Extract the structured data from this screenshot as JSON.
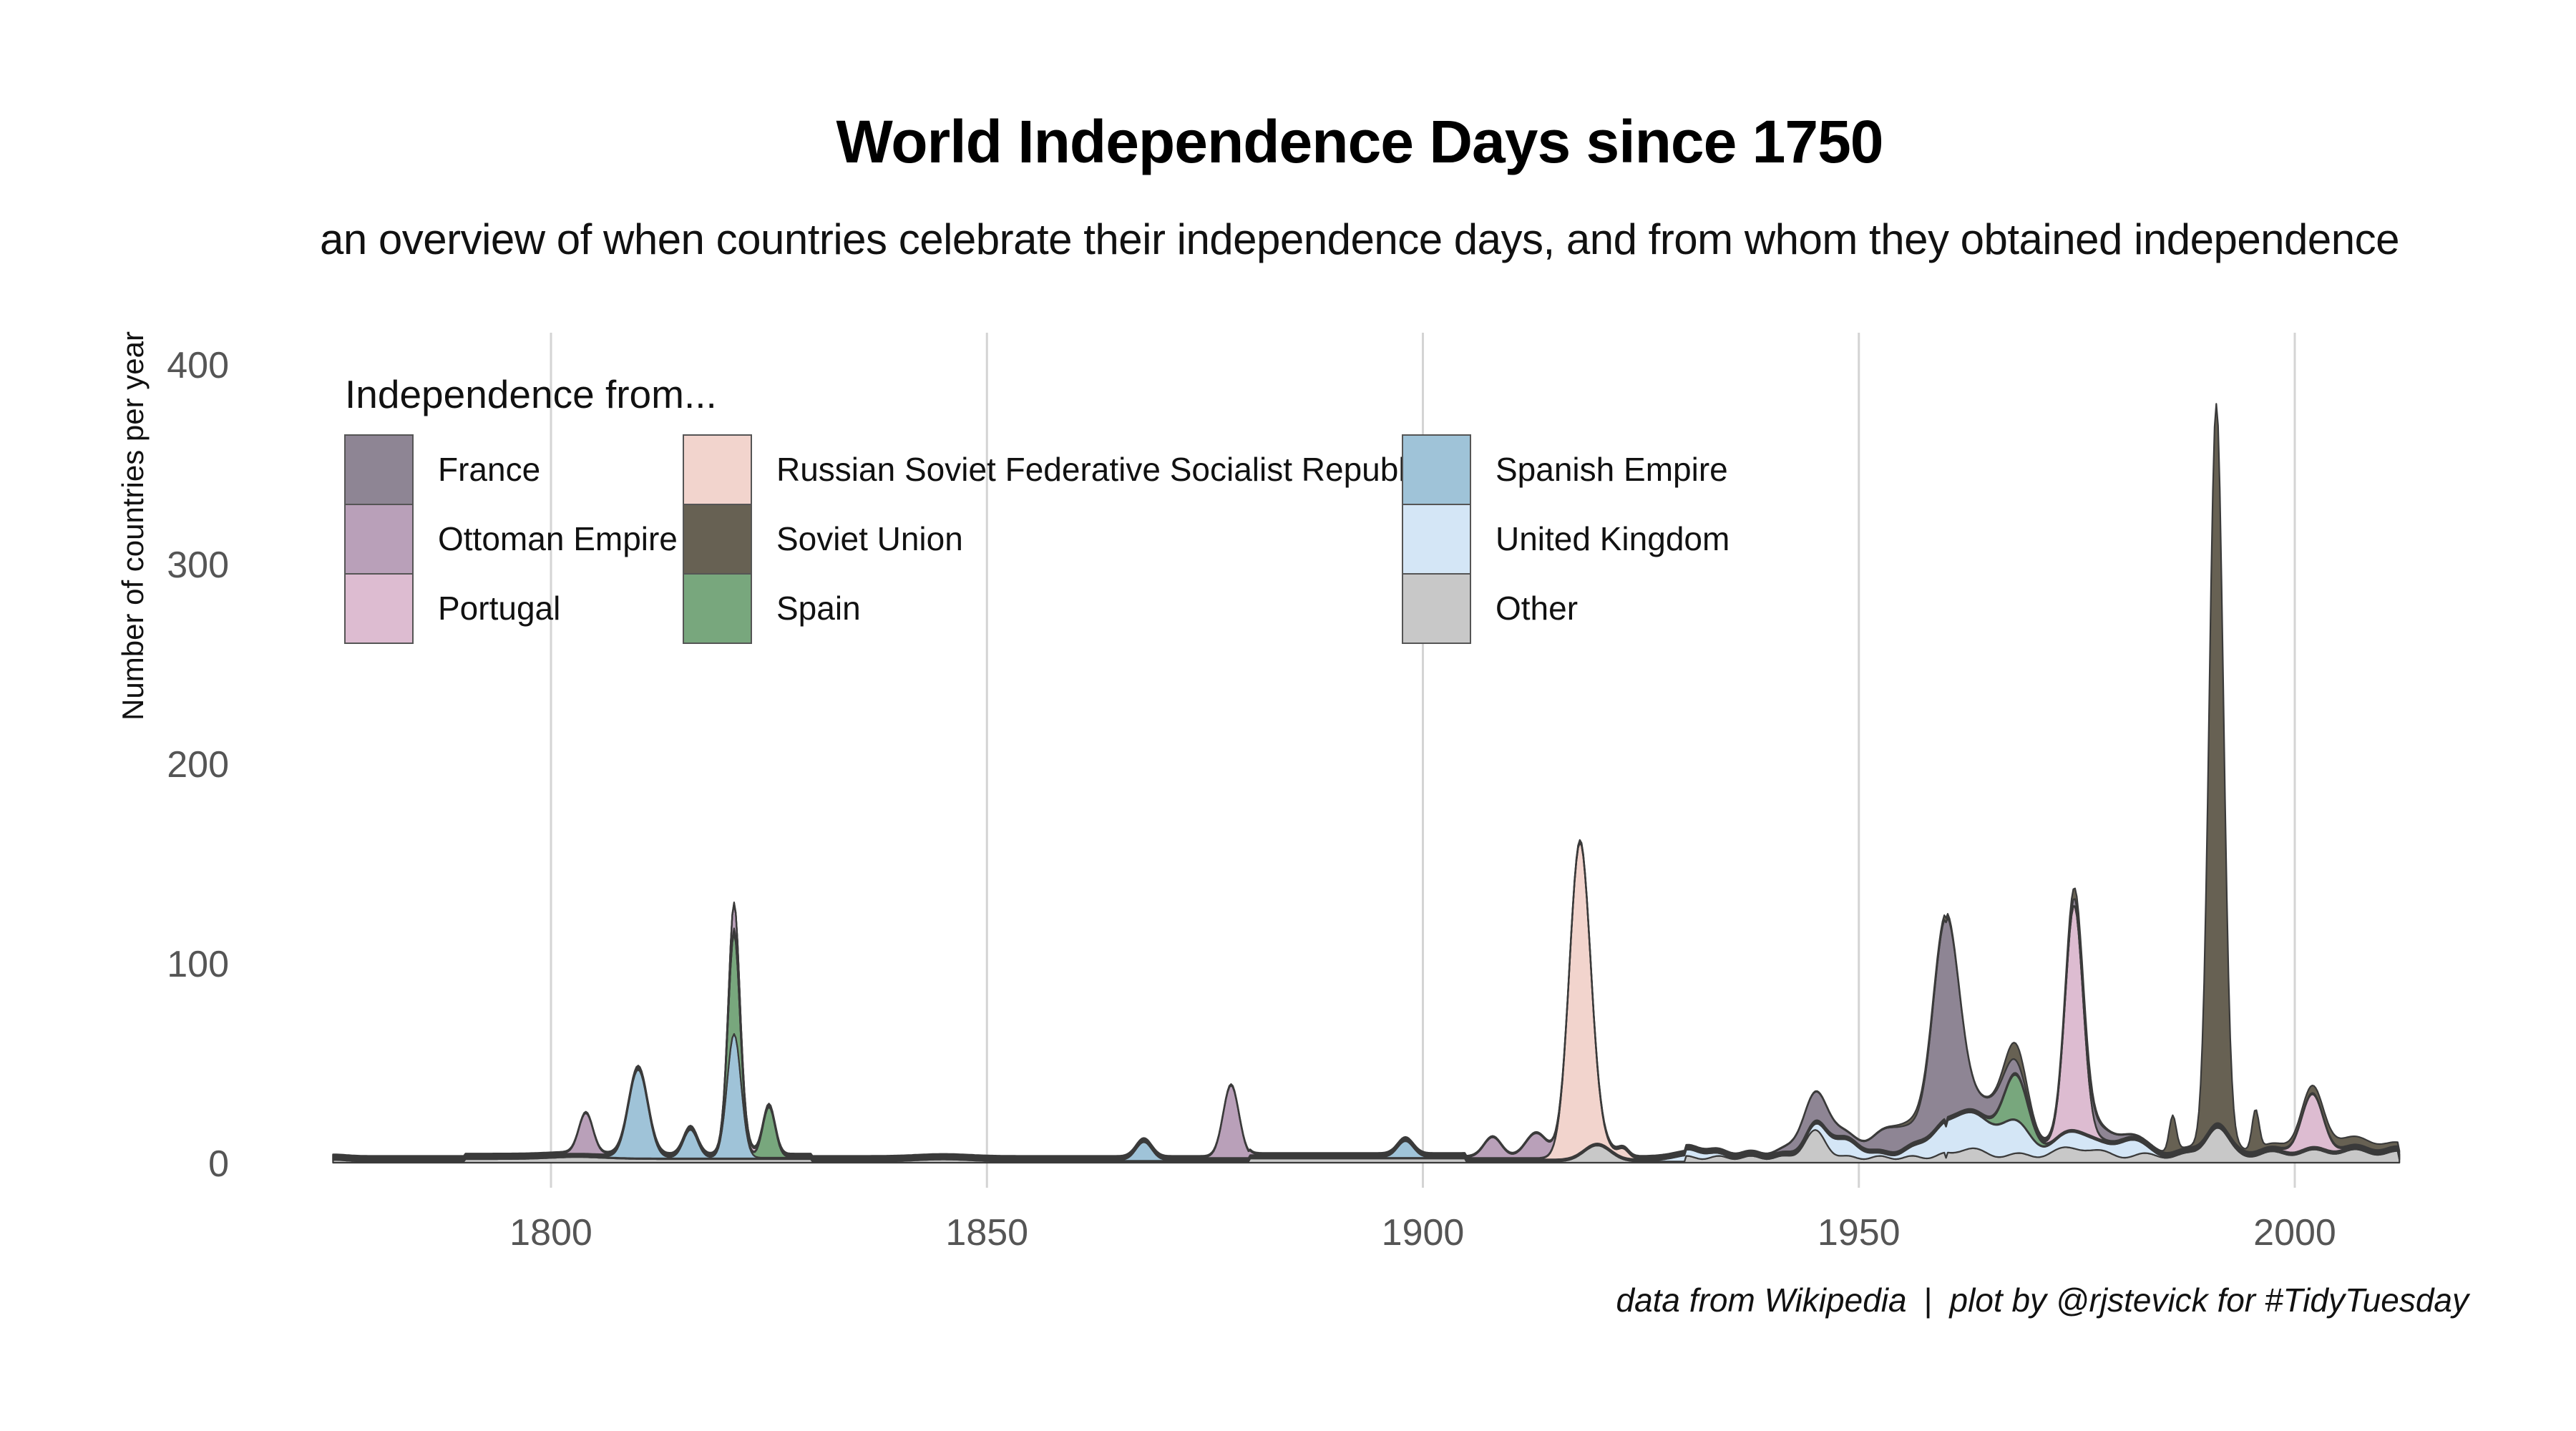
{
  "chart_data": {
    "type": "area",
    "title": "World Independence Days since 1750",
    "subtitle": "an overview of when countries celebrate their independence days, and from whom they obtained independence",
    "ylabel": "Number of countries per year",
    "xlabel": "",
    "xlim": [
      1775,
      2012
    ],
    "ylim": [
      -5,
      420
    ],
    "x_ticks": [
      1800,
      1850,
      1900,
      1950,
      2000
    ],
    "y_ticks": [
      0,
      100,
      200,
      300,
      400
    ],
    "grid": "vertical major only",
    "stacked": true,
    "legend": {
      "title": "Independence from...",
      "placement": "top-left",
      "columns": [
        [
          "France",
          "Ottoman Empire",
          "Portugal"
        ],
        [
          "Russian Soviet Federative Socialist Republic",
          "Soviet Union",
          "Spain"
        ],
        [
          "Spanish Empire",
          "United Kingdom",
          "Other"
        ]
      ]
    },
    "series": [
      {
        "name": "Other",
        "color": "#c8c8c8",
        "peaks": [
          [
            1775,
            0.8,
            1.5
          ],
          [
            1803,
            1,
            3
          ],
          [
            1845,
            1,
            3
          ],
          [
            1920,
            8,
            1.5
          ],
          [
            1945,
            13,
            1.2
          ],
          [
            1962,
            3,
            2
          ],
          [
            1975,
            4,
            2
          ],
          [
            1991,
            14,
            1.2
          ],
          [
            2005,
            2,
            6
          ]
        ]
      },
      {
        "name": "United Kingdom",
        "color": "#d4e6f6",
        "peaks": [
          [
            1931,
            3,
            2
          ],
          [
            1948,
            8,
            2
          ],
          [
            1962,
            18,
            3.5
          ],
          [
            1968,
            12,
            1.8
          ],
          [
            1975,
            8,
            2
          ],
          [
            1981,
            8,
            1.5
          ]
        ]
      },
      {
        "name": "Spanish Empire",
        "color": "#9fc3d8",
        "peaks": [
          [
            1810,
            44,
            1.1
          ],
          [
            1816,
            14,
            0.8
          ],
          [
            1821,
            62,
            0.8
          ],
          [
            1868,
            9,
            0.9
          ],
          [
            1898,
            8,
            0.9
          ]
        ]
      },
      {
        "name": "Spain",
        "color": "#78a77d",
        "peaks": [
          [
            1821,
            50,
            0.6
          ],
          [
            1825,
            25,
            0.7
          ],
          [
            1968,
            22,
            1.3
          ]
        ]
      },
      {
        "name": "Russian Soviet Federative Socialist Republic",
        "color": "#f2d4cd",
        "peaks": [
          [
            1918,
            155,
            1.2
          ],
          [
            1923,
            4,
            0.6
          ]
        ]
      },
      {
        "name": "Portugal",
        "color": "#ddbcd1",
        "peaks": [
          [
            1974.7,
            112,
            1.0
          ],
          [
            1822,
            3,
            1.0
          ],
          [
            2002,
            26,
            1.2
          ]
        ]
      },
      {
        "name": "Ottoman Empire",
        "color": "#b9a0b9",
        "peaks": [
          [
            1804,
            20,
            0.8
          ],
          [
            1821,
            12,
            0.5
          ],
          [
            1878,
            36,
            0.9
          ],
          [
            1908,
            10,
            1.0
          ],
          [
            1913,
            12,
            1.2
          ]
        ]
      },
      {
        "name": "France",
        "color": "#8e8594",
        "peaks": [
          [
            1945,
            14,
            1.8
          ],
          [
            1954,
            12,
            2
          ],
          [
            1960,
            100,
            1.5
          ],
          [
            1966,
            10,
            2
          ],
          [
            1977,
            6,
            2
          ]
        ]
      },
      {
        "name": "Soviet Union",
        "color": "#676153",
        "peaks": [
          [
            1991,
            360,
            0.8
          ],
          [
            1995.5,
            20,
            0.4
          ],
          [
            1986,
            18,
            0.4
          ],
          [
            1968,
            8,
            1.2
          ],
          [
            1975,
            5,
            1.5
          ],
          [
            1958,
            3,
            2
          ],
          [
            2005,
            4,
            5
          ]
        ]
      }
    ]
  },
  "caption": {
    "source": "data from Wikipedia",
    "separator": "|",
    "credit": "plot by @rjstevick for #TidyTuesday"
  }
}
